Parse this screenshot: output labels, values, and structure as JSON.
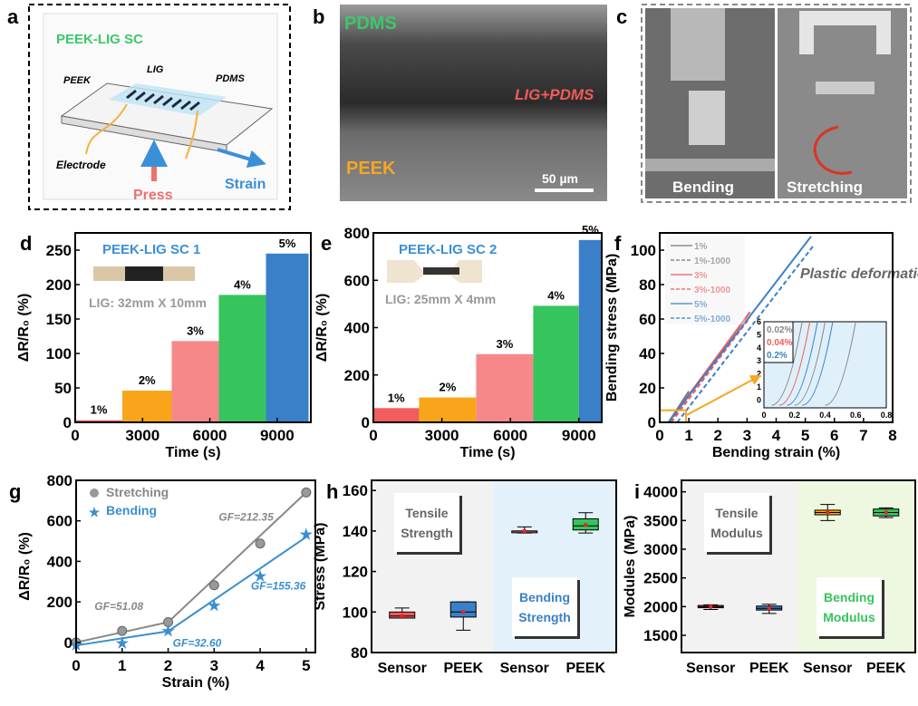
{
  "panel_labels": [
    "a",
    "b",
    "c",
    "d",
    "e",
    "f",
    "g",
    "h",
    "i"
  ],
  "panel_a": {
    "title": "PEEK-LIG SC",
    "peek": "PEEK",
    "lig": "LIG",
    "pdms": "PDMS",
    "electrode": "Electrode",
    "strain": "Strain",
    "press": "Press",
    "title_color": "#3cc86a",
    "strain_color": "#3a8fd8",
    "press_color": "#f07070"
  },
  "panel_b": {
    "pdms": "PDMS",
    "lig_pdms": "LIG+PDMS",
    "peek": "PEEK",
    "scale_bar": "50 µm",
    "pdms_color": "#3cc86a",
    "lig_color": "#f05a5a",
    "peek_color": "#f5a623"
  },
  "panel_c": {
    "left": "Bending",
    "right": "Stretching"
  },
  "chart_data": [
    {
      "id": "d",
      "type": "bar",
      "title": "PEEK-LIG SC 1",
      "inset_caption": "LIG: 32mm X 10mm",
      "xlabel": "Time (s)",
      "ylabel": "ΔR/R₀ (%)",
      "xlim": [
        0,
        10500
      ],
      "ylim": [
        0,
        275
      ],
      "xticks": [
        0,
        3000,
        6000,
        9000
      ],
      "yticks": [
        0,
        50,
        100,
        150,
        200,
        250
      ],
      "steps": [
        {
          "label": "1%",
          "start": 0,
          "end": 2100,
          "value": 3,
          "color": "#f25c5c"
        },
        {
          "label": "2%",
          "start": 2100,
          "end": 4300,
          "value": 46,
          "color": "#f9a51b"
        },
        {
          "label": "3%",
          "start": 4300,
          "end": 6400,
          "value": 118,
          "color": "#f7888a"
        },
        {
          "label": "4%",
          "start": 6400,
          "end": 8500,
          "value": 185,
          "color": "#36c45c"
        },
        {
          "label": "5%",
          "start": 8500,
          "end": 10400,
          "value": 245,
          "color": "#3a80c8"
        }
      ]
    },
    {
      "id": "e",
      "type": "bar",
      "title": "PEEK-LIG SC 2",
      "inset_caption": "LIG: 25mm X 4mm",
      "xlabel": "Time (s)",
      "ylabel": "ΔR/R₀ (%)",
      "xlim": [
        0,
        10000
      ],
      "ylim": [
        0,
        800
      ],
      "xticks": [
        0,
        3000,
        6000,
        9000
      ],
      "yticks": [
        0,
        200,
        400,
        600,
        800
      ],
      "steps": [
        {
          "label": "1%",
          "start": 0,
          "end": 2000,
          "value": 60,
          "color": "#f25c5c"
        },
        {
          "label": "2%",
          "start": 2000,
          "end": 4500,
          "value": 105,
          "color": "#f9a51b"
        },
        {
          "label": "3%",
          "start": 4500,
          "end": 7000,
          "value": 288,
          "color": "#f7888a"
        },
        {
          "label": "4%",
          "start": 7000,
          "end": 9000,
          "value": 492,
          "color": "#36c45c"
        },
        {
          "label": "5%",
          "start": 9000,
          "end": 10000,
          "value": 770,
          "color": "#3a80c8"
        }
      ]
    },
    {
      "id": "f",
      "type": "line",
      "xlabel": "Bending strain (%)",
      "ylabel": "Bending stress (MPa)",
      "xlim": [
        0,
        8
      ],
      "ylim": [
        0,
        110
      ],
      "xticks": [
        0,
        1,
        2,
        3,
        4,
        5,
        6,
        7,
        8
      ],
      "yticks": [
        0,
        20,
        40,
        60,
        80,
        100
      ],
      "legend": "top-left",
      "annotation": "Plastic deformation",
      "series": [
        {
          "name": "1%",
          "color": "#777777",
          "dashed": false,
          "points": [
            [
              0.3,
              0
            ],
            [
              1.0,
              18
            ]
          ]
        },
        {
          "name": "1%-1000",
          "color": "#777777",
          "dashed": true,
          "points": [
            [
              0.35,
              0
            ],
            [
              1.05,
              17
            ]
          ]
        },
        {
          "name": "3%",
          "color": "#f05a5a",
          "dashed": false,
          "points": [
            [
              0.3,
              0
            ],
            [
              3.1,
              64
            ]
          ]
        },
        {
          "name": "3%-1000",
          "color": "#f05a5a",
          "dashed": true,
          "points": [
            [
              0.4,
              0
            ],
            [
              3.1,
              61
            ]
          ]
        },
        {
          "name": "5%",
          "color": "#3a80c8",
          "dashed": false,
          "points": [
            [
              0.3,
              0
            ],
            [
              5.2,
              108
            ]
          ]
        },
        {
          "name": "5%-1000",
          "color": "#3a80c8",
          "dashed": true,
          "points": [
            [
              0.6,
              0
            ],
            [
              5.3,
              103
            ]
          ]
        }
      ],
      "inset": {
        "xlim": [
          0,
          0.8
        ],
        "ylim": [
          -0.6,
          6
        ],
        "xticks": [
          0.0,
          0.2,
          0.4,
          0.6,
          0.8
        ],
        "yticks": [
          0,
          1,
          2,
          3,
          4,
          5,
          6
        ],
        "labels": [
          {
            "text": "0.02%",
            "color": "#888888"
          },
          {
            "text": "0.04%",
            "color": "#f05a5a"
          },
          {
            "text": "0.2%",
            "color": "#3a80c8"
          }
        ]
      }
    },
    {
      "id": "g",
      "type": "line",
      "xlabel": "Strain (%)",
      "ylabel": "ΔR/R₀ (%)",
      "xlim": [
        0,
        5.2
      ],
      "ylim": [
        -50,
        800
      ],
      "xticks": [
        0,
        1,
        2,
        3,
        4,
        5
      ],
      "yticks": [
        0,
        200,
        400,
        600,
        800
      ],
      "legend": "top-left",
      "series": [
        {
          "name": "Stretching",
          "color": "#888888",
          "marker": "circle",
          "x": [
            0,
            1,
            2,
            3,
            4,
            5
          ],
          "y": [
            0,
            57,
            100,
            282,
            488,
            740
          ],
          "fit": [
            [
              0,
              0
            ],
            [
              2,
              100
            ],
            [
              5,
              740
            ]
          ]
        },
        {
          "name": "Bending",
          "color": "#3a8fd0",
          "marker": "star",
          "x": [
            0,
            1,
            2,
            3,
            4,
            5
          ],
          "y": [
            -10,
            0,
            60,
            185,
            330,
            535
          ],
          "fit": [
            [
              0,
              -15
            ],
            [
              2,
              55
            ],
            [
              5,
              520
            ]
          ]
        }
      ],
      "annotations": [
        {
          "text": "GF=51.08",
          "color": "#888888",
          "x": 0.4,
          "y": 160
        },
        {
          "text": "GF=32.60",
          "color": "#3a8fd0",
          "x": 2.1,
          "y": -20
        },
        {
          "text": "GF=212.35",
          "color": "#888888",
          "x": 3.1,
          "y": 600
        },
        {
          "text": "GF=155.36",
          "color": "#3a8fd0",
          "x": 3.8,
          "y": 260
        }
      ]
    },
    {
      "id": "h",
      "type": "box",
      "ylabel": "Stress (MPa)",
      "ylim": [
        80,
        165
      ],
      "yticks": [
        80,
        100,
        120,
        140,
        160
      ],
      "categories": [
        "Sensor",
        "PEEK",
        "Sensor",
        "PEEK"
      ],
      "groups": [
        {
          "label": "Tensile Strength",
          "label_color": "#666666",
          "bg": "#f2f2f2"
        },
        {
          "label": "Bending Strength",
          "label_color": "#3a80c8",
          "bg": "#e3f2fa"
        }
      ],
      "boxes": [
        {
          "min": 97,
          "q1": 97,
          "median": 98,
          "q3": 100,
          "max": 102,
          "mean": 98,
          "color": "#f05a5a"
        },
        {
          "min": 91,
          "q1": 97.5,
          "median": 100,
          "q3": 105,
          "max": 105,
          "mean": 100,
          "color": "#3a80c8"
        },
        {
          "min": 139,
          "q1": 140,
          "median": 140,
          "q3": 140,
          "max": 142,
          "mean": 140,
          "color": "#f05a5a"
        },
        {
          "min": 139,
          "q1": 140.5,
          "median": 142.5,
          "q3": 146,
          "max": 149,
          "mean": 143,
          "color": "#36c45c"
        }
      ]
    },
    {
      "id": "i",
      "type": "box",
      "ylabel": "Modules (MPa)",
      "ylim": [
        1200,
        4200
      ],
      "yticks": [
        1500,
        2000,
        2500,
        3000,
        3500,
        4000
      ],
      "categories": [
        "Sensor",
        "PEEK",
        "Sensor",
        "PEEK"
      ],
      "groups": [
        {
          "label": "Tensile Modulus",
          "label_color": "#666666",
          "bg": "#f2f2f2"
        },
        {
          "label": "Bending Modulus",
          "label_color": "#36c45c",
          "bg": "#eef7df"
        }
      ],
      "boxes": [
        {
          "min": 1950,
          "q1": 1980,
          "median": 2000,
          "q3": 2020,
          "max": 2030,
          "mean": 2000,
          "color": "#f05a5a"
        },
        {
          "min": 1880,
          "q1": 1940,
          "median": 1970,
          "q3": 2010,
          "max": 2040,
          "mean": 1970,
          "color": "#3a80c8"
        },
        {
          "min": 3500,
          "q1": 3600,
          "median": 3640,
          "q3": 3680,
          "max": 3780,
          "mean": 3650,
          "color": "#f9a51b"
        },
        {
          "min": 3550,
          "q1": 3580,
          "median": 3640,
          "q3": 3700,
          "max": 3720,
          "mean": 3640,
          "color": "#36c45c"
        }
      ]
    }
  ]
}
